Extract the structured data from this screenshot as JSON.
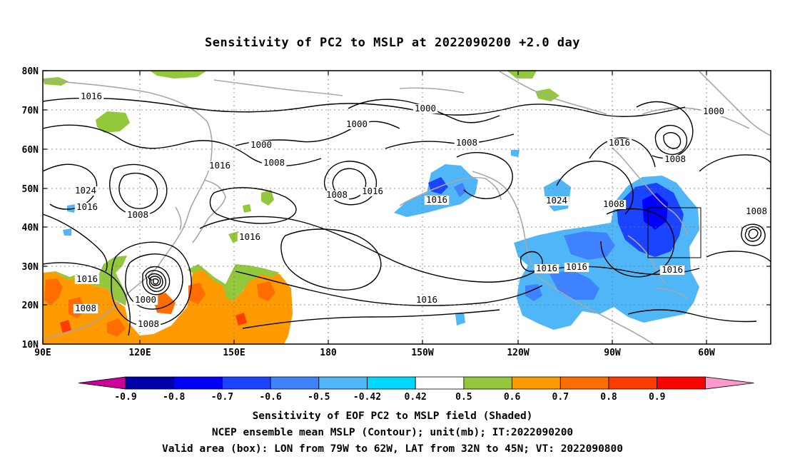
{
  "title": "Sensitivity of PC2 to MSLP at 2022090200 +2.0 day",
  "map": {
    "lat_labels": [
      "80N",
      "70N",
      "60N",
      "50N",
      "40N",
      "30N",
      "20N",
      "10N"
    ],
    "lon_labels": [
      "90E",
      "120E",
      "150E",
      "180",
      "150W",
      "120W",
      "90W",
      "60W"
    ],
    "contour_labels": [
      "1016",
      "1016",
      "1024",
      "1016",
      "1008",
      "1016",
      "1000",
      "1008",
      "1016",
      "1008",
      "1008",
      "1016",
      "1008",
      "1016",
      "1016",
      "1000",
      "1000",
      "1000",
      "1008",
      "1024",
      "1008",
      "1016",
      "1016",
      "1016",
      "1016",
      "1008",
      "1000",
      "1008"
    ]
  },
  "colorbar": {
    "labels": [
      "-0.9",
      "-0.8",
      "-0.7",
      "-0.6",
      "-0.5",
      "-0.42",
      "0.42",
      "0.5",
      "0.6",
      "0.7",
      "0.8",
      "0.9"
    ],
    "colors": [
      "#cc0099",
      "#0000aa",
      "#0000ff",
      "#1a44ff",
      "#3e82ff",
      "#4fb6f8",
      "#00d8ff",
      "#ffffff",
      "#94c83c",
      "#ff9a00",
      "#ff6d00",
      "#ff3c00",
      "#ff0000",
      "#ff99cc"
    ]
  },
  "captions": [
    "Sensitivity of EOF PC2 to MSLP field (Shaded)",
    "NCEP ensemble mean MSLP (Contour); unit(mb); IT:2022090200",
    "Valid area (box): LON from 79W to 62W, LAT from 32N to 45N; VT: 2022090800"
  ]
}
